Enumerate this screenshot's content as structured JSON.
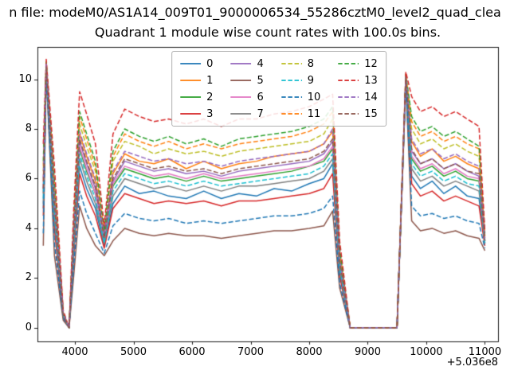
{
  "figure": {
    "suptitle": "n file: modeM0/AS1A14_009T01_9000006534_55286cztM0_level2_quad_clea",
    "title": "Quadrant 1 module wise count rates with 100.0s bins."
  },
  "chart_data": {
    "type": "line",
    "title": "Quadrant 1 module wise count rates with 100.0s bins.",
    "suptitle_visible_fragment": "n file: modeM0/AS1A14_009T01_9000006534_55286cztM0_level2_quad_clea",
    "xlabel": "",
    "ylabel": "",
    "x_axis_offset_label": "+5.036e8",
    "xlim": [
      3360,
      11225
    ],
    "ylim": [
      -0.55,
      11.3
    ],
    "xticks": [
      4000,
      5000,
      6000,
      7000,
      8000,
      9000,
      10000,
      11000
    ],
    "yticks": [
      0,
      2,
      4,
      6,
      8,
      10
    ],
    "grid": false,
    "legend_position": "upper center",
    "legend_columns": 4,
    "x": [
      3460,
      3510,
      3650,
      3800,
      3900,
      3980,
      4080,
      4200,
      4350,
      4500,
      4650,
      4850,
      5100,
      5350,
      5600,
      5900,
      6200,
      6500,
      6800,
      7100,
      7400,
      7700,
      8000,
      8250,
      8400,
      8520,
      8700,
      9100,
      9500,
      9650,
      9750,
      9900,
      10100,
      10300,
      10500,
      10700,
      10900,
      11000
    ],
    "series": [
      {
        "name": "0",
        "color": "#1f77b4",
        "dashed": false,
        "values": [
          4.8,
          10.4,
          4.2,
          0.4,
          0.0,
          3.1,
          6.5,
          5.6,
          4.8,
          3.3,
          5.0,
          5.7,
          5.4,
          5.5,
          5.3,
          5.2,
          5.5,
          5.2,
          5.4,
          5.3,
          5.6,
          5.5,
          5.8,
          6.0,
          6.6,
          2.2,
          0.0,
          0.0,
          0.0,
          10.0,
          6.1,
          5.6,
          5.9,
          5.4,
          5.7,
          5.3,
          5.2,
          3.4
        ]
      },
      {
        "name": "1",
        "color": "#ff7f0e",
        "dashed": false,
        "values": [
          5.9,
          10.6,
          5.2,
          0.5,
          0.0,
          3.8,
          7.8,
          6.9,
          5.9,
          3.6,
          6.2,
          7.0,
          6.7,
          6.6,
          6.8,
          6.4,
          6.7,
          6.4,
          6.6,
          6.7,
          6.9,
          7.0,
          7.1,
          7.4,
          7.9,
          2.8,
          0.0,
          0.0,
          0.0,
          10.1,
          7.5,
          6.9,
          7.2,
          6.7,
          6.9,
          6.6,
          6.4,
          3.6
        ]
      },
      {
        "name": "2",
        "color": "#2ca02c",
        "dashed": false,
        "values": [
          5.4,
          10.5,
          4.7,
          0.5,
          0.0,
          3.5,
          7.2,
          6.3,
          5.4,
          3.5,
          5.7,
          6.4,
          6.2,
          6.0,
          6.1,
          5.9,
          6.1,
          5.9,
          6.0,
          6.1,
          6.2,
          6.3,
          6.5,
          6.7,
          7.2,
          2.5,
          0.0,
          0.0,
          0.0,
          10.0,
          6.8,
          6.3,
          6.5,
          6.1,
          6.3,
          6.0,
          5.9,
          3.5
        ]
      },
      {
        "name": "3",
        "color": "#d62728",
        "dashed": false,
        "values": [
          4.5,
          10.3,
          4.0,
          0.4,
          0.0,
          2.9,
          6.2,
          5.3,
          4.5,
          3.2,
          4.8,
          5.4,
          5.2,
          5.0,
          5.1,
          5.0,
          5.1,
          4.9,
          5.1,
          5.1,
          5.2,
          5.3,
          5.4,
          5.6,
          6.2,
          2.1,
          0.0,
          0.0,
          0.0,
          9.9,
          5.8,
          5.3,
          5.5,
          5.1,
          5.3,
          5.1,
          4.9,
          3.3
        ]
      },
      {
        "name": "4",
        "color": "#9467bd",
        "dashed": false,
        "values": [
          5.6,
          10.6,
          5.0,
          0.5,
          0.0,
          3.6,
          7.5,
          6.6,
          5.6,
          3.6,
          5.9,
          6.7,
          6.5,
          6.3,
          6.4,
          6.2,
          6.3,
          6.1,
          6.3,
          6.4,
          6.5,
          6.6,
          6.7,
          7.0,
          7.5,
          2.6,
          0.0,
          0.0,
          0.0,
          10.1,
          7.1,
          6.6,
          6.8,
          6.4,
          6.6,
          6.3,
          6.1,
          3.5
        ]
      },
      {
        "name": "5",
        "color": "#8c564b",
        "dashed": false,
        "values": [
          3.3,
          10.3,
          2.9,
          0.3,
          0.0,
          2.1,
          4.9,
          4.0,
          3.3,
          2.9,
          3.5,
          4.0,
          3.8,
          3.7,
          3.8,
          3.7,
          3.7,
          3.6,
          3.7,
          3.8,
          3.9,
          3.9,
          4.0,
          4.1,
          4.7,
          1.6,
          0.0,
          0.0,
          0.0,
          9.8,
          4.3,
          3.9,
          4.0,
          3.8,
          3.9,
          3.7,
          3.6,
          3.1
        ]
      },
      {
        "name": "6",
        "color": "#e377c2",
        "dashed": false,
        "values": [
          5.4,
          10.5,
          4.8,
          0.5,
          0.0,
          3.5,
          7.3,
          6.4,
          5.4,
          3.5,
          5.8,
          6.5,
          6.3,
          6.1,
          6.2,
          6.0,
          6.2,
          6.0,
          6.1,
          6.2,
          6.3,
          6.4,
          6.5,
          6.8,
          7.3,
          2.6,
          0.0,
          0.0,
          0.0,
          10.0,
          6.9,
          6.4,
          6.6,
          6.2,
          6.4,
          6.1,
          6.0,
          3.5
        ]
      },
      {
        "name": "7",
        "color": "#7f7f7f",
        "dashed": false,
        "values": [
          5.0,
          10.4,
          4.4,
          0.5,
          0.0,
          3.2,
          6.8,
          5.9,
          5.0,
          3.4,
          5.3,
          6.0,
          5.8,
          5.6,
          5.7,
          5.5,
          5.7,
          5.5,
          5.7,
          5.7,
          5.8,
          5.9,
          6.0,
          6.3,
          6.8,
          2.4,
          0.0,
          0.0,
          0.0,
          10.0,
          6.4,
          5.9,
          6.1,
          5.7,
          5.9,
          5.7,
          5.5,
          3.4
        ]
      },
      {
        "name": "8",
        "color": "#bcbd22",
        "dashed": true,
        "values": [
          6.3,
          10.6,
          5.6,
          0.6,
          0.0,
          4.1,
          8.2,
          7.3,
          6.3,
          3.8,
          6.7,
          7.5,
          7.3,
          7.0,
          7.2,
          7.0,
          7.1,
          6.9,
          7.1,
          7.2,
          7.3,
          7.4,
          7.5,
          7.8,
          8.4,
          3.0,
          0.0,
          0.0,
          0.0,
          10.1,
          8.0,
          7.4,
          7.6,
          7.2,
          7.4,
          7.1,
          6.9,
          3.7
        ]
      },
      {
        "name": "9",
        "color": "#17becf",
        "dashed": true,
        "values": [
          5.2,
          10.4,
          4.6,
          0.5,
          0.0,
          3.4,
          7.0,
          6.1,
          5.2,
          3.4,
          5.5,
          6.2,
          6.0,
          5.8,
          5.9,
          5.7,
          5.9,
          5.7,
          5.8,
          5.9,
          6.0,
          6.1,
          6.2,
          6.5,
          7.0,
          2.4,
          0.0,
          0.0,
          0.0,
          10.0,
          6.6,
          6.1,
          6.3,
          5.9,
          6.1,
          5.8,
          5.7,
          3.4
        ]
      },
      {
        "name": "10",
        "color": "#1f77b4",
        "dashed": true,
        "values": [
          3.8,
          10.3,
          3.4,
          0.4,
          0.0,
          2.5,
          5.5,
          4.6,
          3.8,
          3.0,
          4.1,
          4.6,
          4.4,
          4.3,
          4.4,
          4.2,
          4.3,
          4.2,
          4.3,
          4.4,
          4.5,
          4.5,
          4.6,
          4.8,
          5.3,
          1.8,
          0.0,
          0.0,
          0.0,
          9.9,
          4.9,
          4.5,
          4.6,
          4.4,
          4.5,
          4.3,
          4.2,
          3.2
        ]
      },
      {
        "name": "11",
        "color": "#ff7f0e",
        "dashed": true,
        "values": [
          6.5,
          10.7,
          5.8,
          0.6,
          0.0,
          4.2,
          8.5,
          7.6,
          6.5,
          3.8,
          6.9,
          7.8,
          7.5,
          7.3,
          7.5,
          7.2,
          7.4,
          7.2,
          7.4,
          7.5,
          7.6,
          7.7,
          7.9,
          8.2,
          8.7,
          3.1,
          0.0,
          0.0,
          0.0,
          10.2,
          8.3,
          7.7,
          7.9,
          7.5,
          7.7,
          7.4,
          7.2,
          3.7
        ]
      },
      {
        "name": "12",
        "color": "#2ca02c",
        "dashed": true,
        "values": [
          6.7,
          10.7,
          5.9,
          0.6,
          0.0,
          4.3,
          8.7,
          7.8,
          6.7,
          3.9,
          7.1,
          8.0,
          7.7,
          7.5,
          7.7,
          7.4,
          7.6,
          7.3,
          7.6,
          7.7,
          7.8,
          7.9,
          8.1,
          8.4,
          8.9,
          3.2,
          0.0,
          0.0,
          0.0,
          10.2,
          8.5,
          7.9,
          8.1,
          7.7,
          7.9,
          7.6,
          7.3,
          3.8
        ]
      },
      {
        "name": "13",
        "color": "#d62728",
        "dashed": true,
        "values": [
          7.4,
          10.8,
          6.5,
          0.7,
          0.0,
          4.8,
          9.5,
          8.6,
          7.4,
          4.1,
          7.8,
          8.8,
          8.5,
          8.3,
          8.4,
          8.2,
          8.4,
          8.1,
          8.4,
          8.4,
          8.6,
          8.7,
          8.9,
          9.2,
          9.4,
          3.5,
          0.0,
          0.0,
          0.0,
          10.3,
          9.3,
          8.7,
          8.9,
          8.5,
          8.7,
          8.4,
          8.1,
          3.9
        ]
      },
      {
        "name": "14",
        "color": "#9467bd",
        "dashed": true,
        "values": [
          6.0,
          10.6,
          5.3,
          0.6,
          0.0,
          3.9,
          7.9,
          7.0,
          6.0,
          3.7,
          6.3,
          7.1,
          6.9,
          6.7,
          6.8,
          6.6,
          6.7,
          6.5,
          6.7,
          6.8,
          6.9,
          7.0,
          7.1,
          7.4,
          8.0,
          2.8,
          0.0,
          0.0,
          0.0,
          10.1,
          7.6,
          7.0,
          7.2,
          6.8,
          7.0,
          6.7,
          6.5,
          3.6
        ]
      },
      {
        "name": "15",
        "color": "#8c564b",
        "dashed": true,
        "values": [
          5.6,
          10.5,
          5.0,
          0.5,
          0.0,
          3.6,
          7.6,
          6.7,
          5.7,
          3.6,
          6.0,
          6.8,
          6.6,
          6.4,
          6.5,
          6.3,
          6.4,
          6.2,
          6.4,
          6.5,
          6.6,
          6.7,
          6.8,
          7.1,
          7.6,
          2.7,
          0.0,
          0.0,
          0.0,
          10.1,
          7.2,
          6.6,
          6.8,
          6.4,
          6.6,
          6.3,
          6.2,
          3.5
        ]
      }
    ]
  }
}
